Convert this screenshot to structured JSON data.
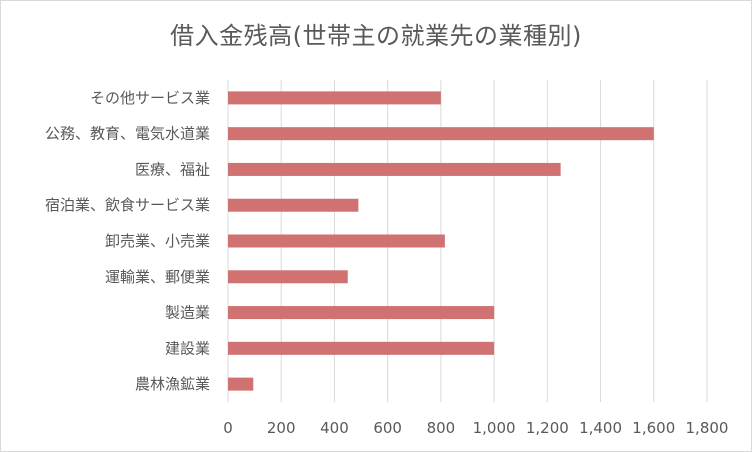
{
  "chart_data": {
    "type": "bar",
    "orientation": "horizontal",
    "title": "借入金残高(世帯主の就業先の業種別)",
    "categories": [
      "その他サービス業",
      "公務、教育、電気水道業",
      "医療、福祉",
      "宿泊業、飲食サービス業",
      "卸売業、小売業",
      "運輸業、郵便業",
      "製造業",
      "建設業",
      "農林漁鉱業"
    ],
    "values": [
      800,
      1600,
      1250,
      490,
      815,
      450,
      1000,
      1000,
      95
    ],
    "xlim": [
      0,
      1800
    ],
    "xticks": [
      0,
      200,
      400,
      600,
      800,
      1000,
      1200,
      1400,
      1600,
      1800
    ],
    "xtick_labels": [
      "0",
      "200",
      "400",
      "600",
      "800",
      "1,000",
      "1,200",
      "1,400",
      "1,600",
      "1,800"
    ],
    "grid": "vertical",
    "bar_color": "#d07272",
    "legend": "none",
    "xlabel": "",
    "ylabel": ""
  }
}
